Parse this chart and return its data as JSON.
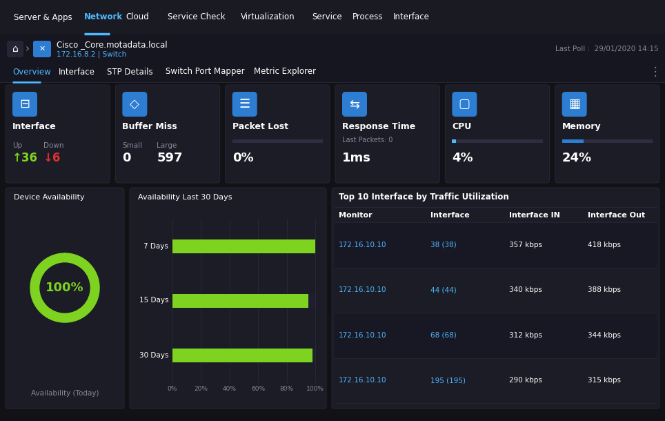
{
  "dark_bg": "#111116",
  "nav_bg": "#1a1a22",
  "card_bg": "#1c1c26",
  "card_border": "#2a2a3a",
  "section_bg": "#141418",
  "text_white": "#ffffff",
  "text_gray": "#888899",
  "text_blue": "#4db8ff",
  "accent_blue": "#2d7dd2",
  "accent_green": "#7ed321",
  "red": "#e03030",
  "nav_items": [
    "Server & Apps",
    "Network",
    "Cloud",
    "Service Check",
    "Virtualization",
    "Service",
    "Process",
    "Interface"
  ],
  "nav_active": "Network",
  "nav_active_color": "#4db8ff",
  "breadcrumb_main": "Cisco _Core.motadata.local",
  "breadcrumb_sub": "172.16.8.2 | Switch",
  "last_poll": "Last Poll :  29/01/2020 14:15",
  "tabs": [
    "Overview",
    "Interface",
    "STP Details",
    "Switch Port Mapper",
    "Metric Explorer"
  ],
  "tab_active": "Overview",
  "metrics": [
    {
      "title": "Interface",
      "sub1_label": "Up",
      "sub1_val": "36",
      "sub1_color": "#7ed321",
      "sub1_arrow": "↑",
      "sub2_label": "Down",
      "sub2_val": "6",
      "sub2_color": "#e03030",
      "sub2_arrow": "↓"
    },
    {
      "title": "Buffer Miss",
      "sub1_label": "Small",
      "sub1_val": "0",
      "sub1_color": "#ffffff",
      "sub2_label": "Large",
      "sub2_val": "597",
      "sub2_color": "#ffffff"
    },
    {
      "title": "Packet Lost",
      "bar": true,
      "bar_pct": 0,
      "bar_color": "#555566",
      "display": "0%"
    },
    {
      "title": "Response Time",
      "subtitle": "Last Packets: 0",
      "display": "1ms"
    },
    {
      "title": "CPU",
      "bar": true,
      "bar_pct": 4,
      "bar_color": "#4db8ff",
      "display": "4%"
    },
    {
      "title": "Memory",
      "bar": true,
      "bar_pct": 24,
      "bar_color": "#2d7dd2",
      "display": "24%"
    }
  ],
  "avail_pct": 100,
  "avail_label": "Availability (Today)",
  "avail30_bars": [
    {
      "label": "7 Days",
      "pct": 100
    },
    {
      "label": "15 Days",
      "pct": 95
    },
    {
      "label": "30 Days",
      "pct": 98
    }
  ],
  "table_title": "Top 10 Interface by Traffic Utilization",
  "table_headers": [
    "Monitor",
    "Interface",
    "Interface IN",
    "Interface Out"
  ],
  "table_rows": [
    [
      "172.16.10.10",
      "38 (38)",
      "357 kbps",
      "418 kbps"
    ],
    [
      "172.16.10.10",
      "44 (44)",
      "340 kbps",
      "388 kbps"
    ],
    [
      "172.16.10.10",
      "68 (68)",
      "312 kbps",
      "344 kbps"
    ],
    [
      "172.16.10.10",
      "195 (195)",
      "290 kbps",
      "315 kbps"
    ]
  ]
}
